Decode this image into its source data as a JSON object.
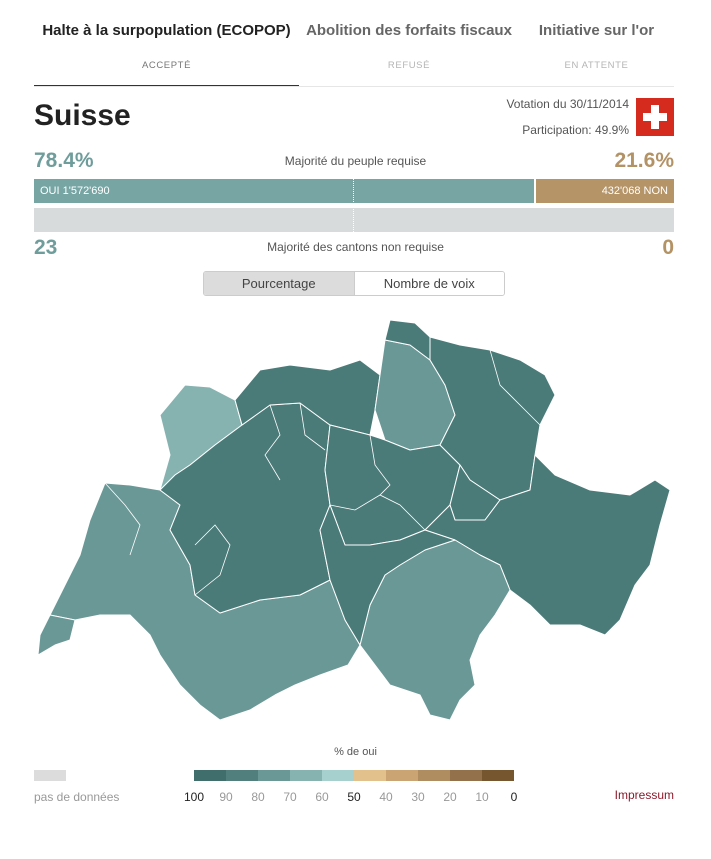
{
  "tabs": [
    {
      "title": "Halte à la surpopulation (ECOPOP)",
      "status": "ACCEPTÉ"
    },
    {
      "title": "Abolition des forfaits fiscaux",
      "status": "REFUSÉ"
    },
    {
      "title": "Initiative sur l'or",
      "status": "EN ATTENTE"
    }
  ],
  "header": {
    "country": "Suisse",
    "vote_date": "Votation du 30/11/2014",
    "participation": "Participation: 49.9%",
    "flag_icon": "swiss-flag-icon"
  },
  "people": {
    "yes_pct": "78.4%",
    "no_pct": "21.6%",
    "label": "Majorité du peuple requise",
    "yes_bar_label": "OUI 1'572'690",
    "no_bar_label": "432'068 NON",
    "yes_share": 0.784
  },
  "cantons": {
    "yes_count": "23",
    "no_count": "0",
    "label": "Majorité des cantons non requise"
  },
  "toggle": {
    "percent_label": "Pourcentage",
    "votes_label": "Nombre de voix"
  },
  "legend": {
    "title": "% de oui",
    "no_data_label": "pas de données",
    "swatch_colors": [
      "#3f6e6c",
      "#507f7d",
      "#6a9896",
      "#86b3b0",
      "#a5d0cd",
      "#e3c18c",
      "#caa473",
      "#b08d60",
      "#93714a",
      "#76562f"
    ],
    "ticks": [
      "100",
      "90",
      "80",
      "70",
      "60",
      "50",
      "40",
      "30",
      "20",
      "10",
      "0"
    ]
  },
  "footer": {
    "impressum": "Impressum"
  },
  "colors": {
    "yes_accent": "#6f9d9b",
    "no_accent": "#b39265",
    "yes_bar": "#76a5a4",
    "no_bar": "#b59468",
    "map_dark": "#4a7b79",
    "map_mid": "#6a9896",
    "map_light": "#86b3b0"
  }
}
